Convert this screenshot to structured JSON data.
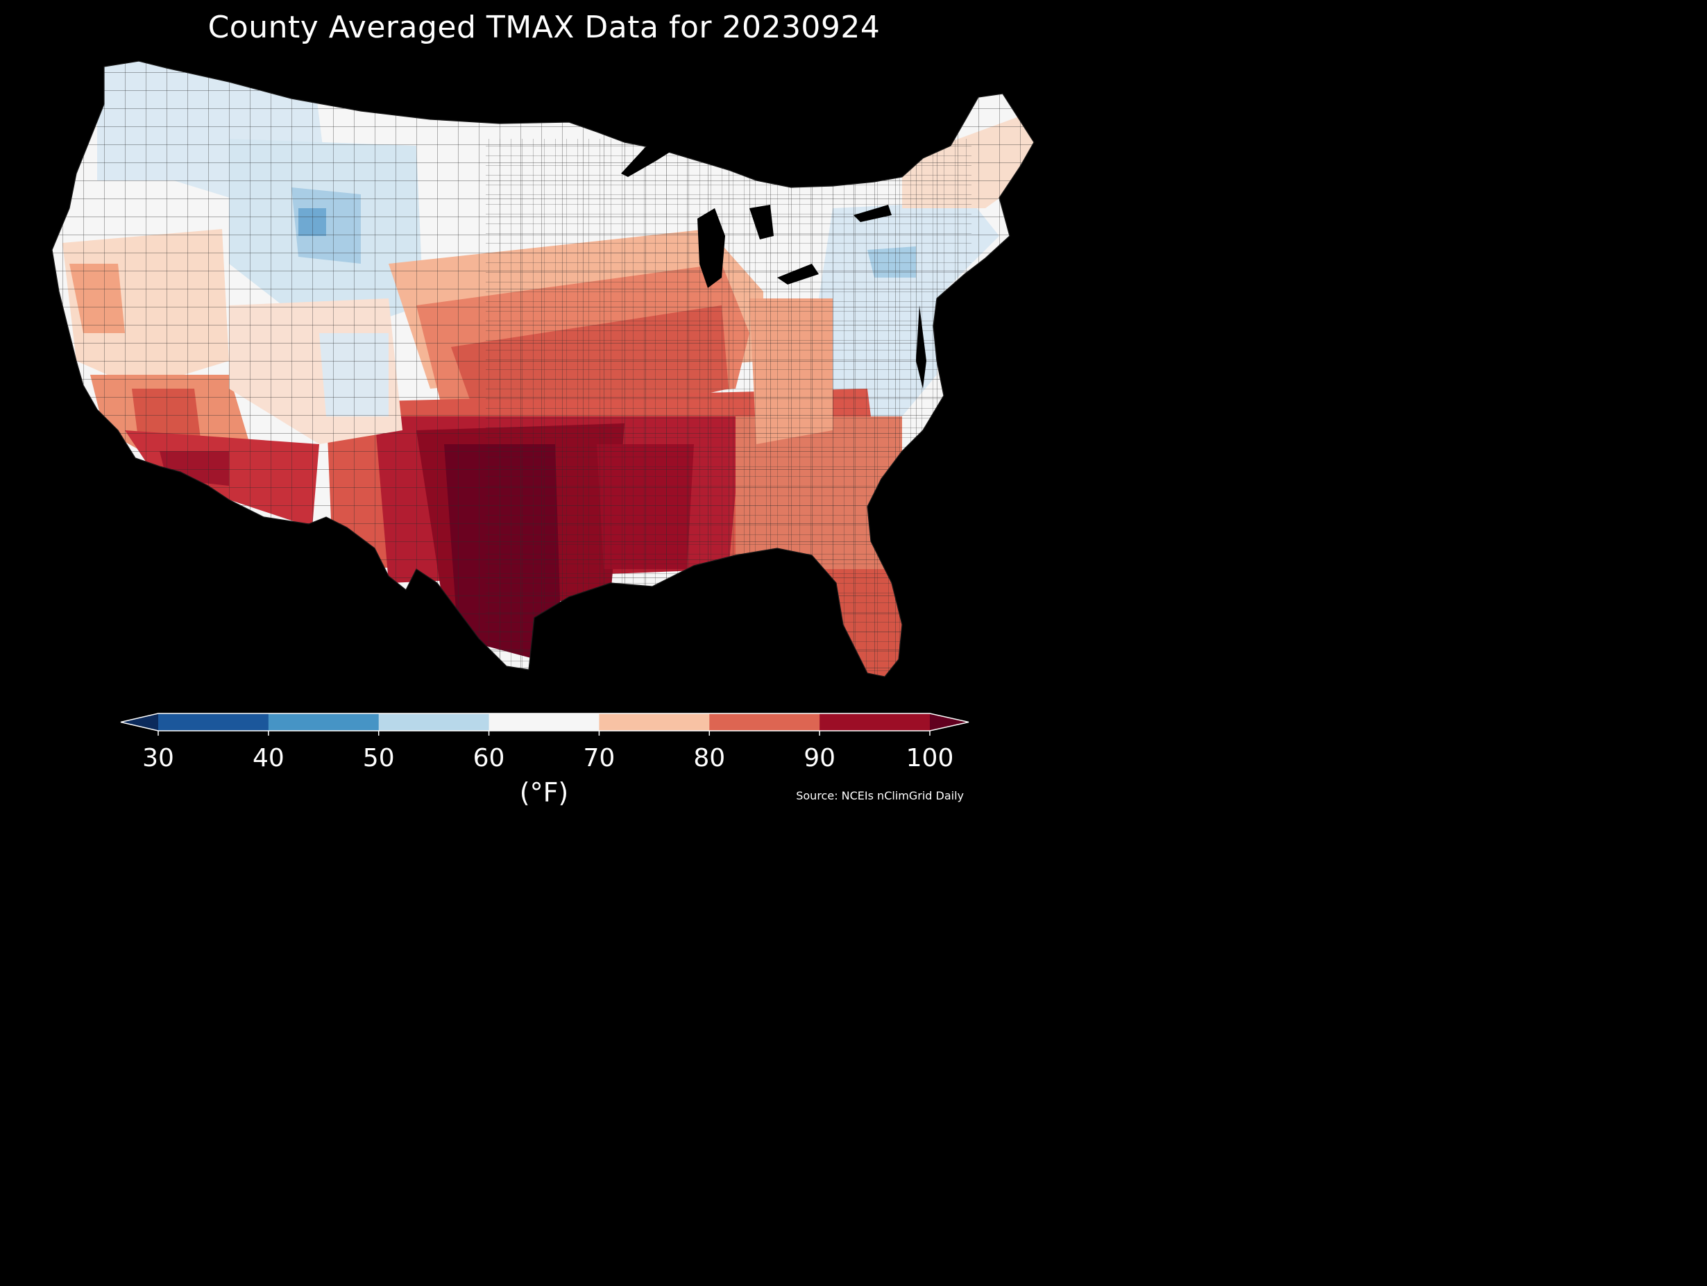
{
  "title": "County Averaged TMAX Data for 20230924",
  "source": "Source: NCEIs nClimGrid Daily",
  "colorbar": {
    "unit": "(°F)",
    "ticks": [
      "30",
      "40",
      "50",
      "60",
      "70",
      "80",
      "90",
      "100"
    ],
    "bins": [
      {
        "range": "<30",
        "color": "#0b2a5b"
      },
      {
        "range": "30-40",
        "color": "#1b579b"
      },
      {
        "range": "40-50",
        "color": "#4694c5"
      },
      {
        "range": "50-60",
        "color": "#b8d8ea"
      },
      {
        "range": "60-70",
        "color": "#f6f6f6"
      },
      {
        "range": "70-80",
        "color": "#f8c2a4"
      },
      {
        "range": "80-90",
        "color": "#dd6552"
      },
      {
        "range": "90-100",
        "color": "#9c0e26"
      },
      {
        "range": ">100",
        "color": "#61001f"
      }
    ]
  },
  "map": {
    "background": "#000000",
    "border_color": "#2a2a2a"
  }
}
